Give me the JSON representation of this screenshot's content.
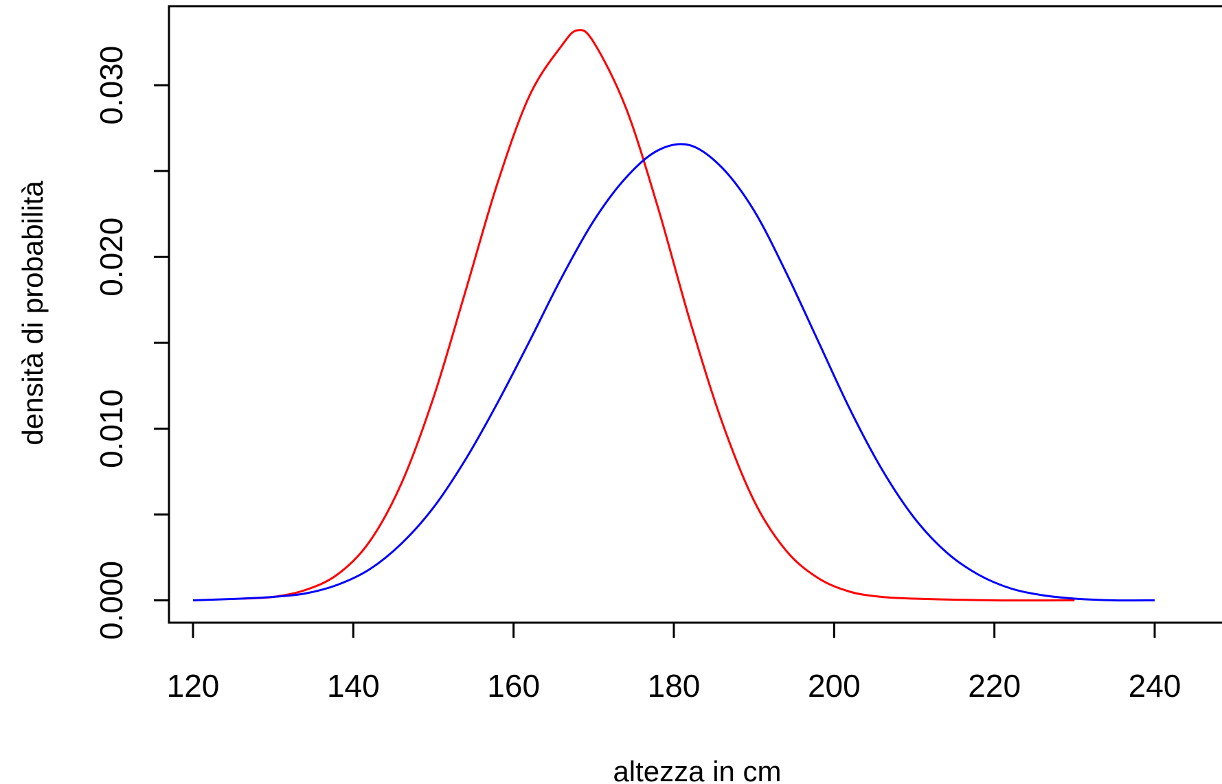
{
  "chart_data": {
    "type": "line",
    "xlabel": "altezza in cm",
    "ylabel": "densità di probabilità",
    "xlim": [
      117,
      249
    ],
    "ylim": [
      -0.0013,
      0.0346
    ],
    "x_ticks": [
      120,
      140,
      160,
      180,
      200,
      220,
      240
    ],
    "x_tick_labels": [
      "120",
      "140",
      "160",
      "180",
      "200",
      "220",
      "240"
    ],
    "y_ticks": [
      0.0,
      0.005,
      0.01,
      0.015,
      0.02,
      0.025,
      0.03
    ],
    "y_tick_labels": [
      "0.000",
      "",
      "0.010",
      "",
      "0.020",
      "",
      "0.030"
    ],
    "grid": false,
    "legend": "none",
    "series": [
      {
        "color": "#ff0000",
        "x": [
          126,
          130,
          134,
          138,
          142,
          146,
          150,
          154,
          158,
          162,
          166,
          168,
          170,
          174,
          178,
          182,
          186,
          190,
          194,
          198,
          202,
          206,
          210,
          220,
          230
        ],
        "y": [
          0.0001,
          0.0002,
          0.0006,
          0.0015,
          0.0034,
          0.0068,
          0.0118,
          0.018,
          0.0243,
          0.0294,
          0.0323,
          0.0332,
          0.0325,
          0.0287,
          0.0229,
          0.0163,
          0.0104,
          0.0058,
          0.0029,
          0.0013,
          0.0005,
          0.0002,
          0.0001,
          0.0,
          0.0
        ]
      },
      {
        "color": "#0000ff",
        "x": [
          120,
          126,
          130,
          134,
          138,
          142,
          146,
          150,
          154,
          158,
          162,
          166,
          170,
          174,
          178,
          182,
          186,
          190,
          194,
          198,
          202,
          206,
          210,
          214,
          218,
          222,
          226,
          230,
          235,
          240
        ],
        "y": [
          0.0,
          0.0001,
          0.0002,
          0.0004,
          0.0009,
          0.0018,
          0.0033,
          0.0054,
          0.0082,
          0.0115,
          0.0151,
          0.0188,
          0.0221,
          0.0246,
          0.0262,
          0.0265,
          0.0252,
          0.0227,
          0.0191,
          0.0151,
          0.0111,
          0.0076,
          0.0048,
          0.0028,
          0.0015,
          0.0007,
          0.0003,
          0.0001,
          0.0,
          0.0
        ]
      }
    ]
  }
}
